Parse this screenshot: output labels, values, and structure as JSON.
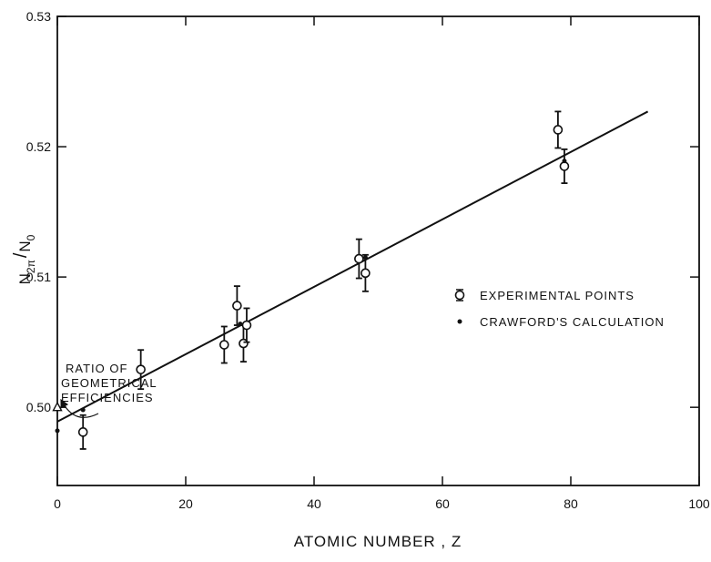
{
  "chart_data": {
    "type": "scatter",
    "title": "",
    "xlabel": "ATOMIC NUMBER , Z",
    "ylabel_main": "N",
    "ylabel_sub": "2π",
    "ylabel_den": "N",
    "ylabel_den_sub": "0",
    "xlim": [
      0,
      100
    ],
    "ylim": [
      0.494,
      0.53
    ],
    "x_ticks": [
      0,
      20,
      40,
      60,
      80,
      100
    ],
    "x_tick_labels": [
      "0",
      "20",
      "40",
      "60",
      "80",
      "100"
    ],
    "y_ticks": [
      0.5,
      0.51,
      0.52,
      0.53
    ],
    "y_tick_labels": [
      "0.50",
      "0.51",
      "0.52",
      "0.53"
    ],
    "grid": false,
    "legend_position": "right-middle",
    "legend": [
      {
        "marker": "open-circle-errorbar",
        "label": "EXPERIMENTAL POINTS"
      },
      {
        "marker": "dot",
        "label": "CRAWFORD'S CALCULATION"
      }
    ],
    "annotation": {
      "lines": [
        "RATIO OF",
        "GEOMETRICAL",
        "EFFICIENCIES"
      ],
      "target": {
        "x": 0,
        "y": 0.5
      }
    },
    "fit_line": {
      "x": [
        0,
        92
      ],
      "y": [
        0.4989,
        0.5227
      ]
    },
    "series": [
      {
        "name": "EXPERIMENTAL POINTS",
        "marker": "open-circle",
        "points": [
          {
            "x": 4,
            "y": 0.4981,
            "err": 0.0013
          },
          {
            "x": 13,
            "y": 0.5029,
            "err": 0.0015
          },
          {
            "x": 26,
            "y": 0.5048,
            "err": 0.0014
          },
          {
            "x": 28,
            "y": 0.5078,
            "err": 0.0015
          },
          {
            "x": 29,
            "y": 0.5049,
            "err": 0.0014
          },
          {
            "x": 29.5,
            "y": 0.5063,
            "err": 0.0013
          },
          {
            "x": 47,
            "y": 0.5114,
            "err": 0.0015
          },
          {
            "x": 48,
            "y": 0.5103,
            "err": 0.0014
          },
          {
            "x": 78,
            "y": 0.5213,
            "err": 0.0014
          },
          {
            "x": 79,
            "y": 0.5185,
            "err": 0.0013
          }
        ]
      },
      {
        "name": "CRAWFORD'S CALCULATION",
        "marker": "dot",
        "points": [
          {
            "x": 0,
            "y": 0.4982
          },
          {
            "x": 4,
            "y": 0.4998
          },
          {
            "x": 28.5,
            "y": 0.5064
          },
          {
            "x": 48,
            "y": 0.5115
          },
          {
            "x": 79,
            "y": 0.5189
          }
        ]
      },
      {
        "name": "",
        "marker": "open-triangle",
        "points": [
          {
            "x": 0,
            "y": 0.5
          }
        ]
      }
    ]
  }
}
